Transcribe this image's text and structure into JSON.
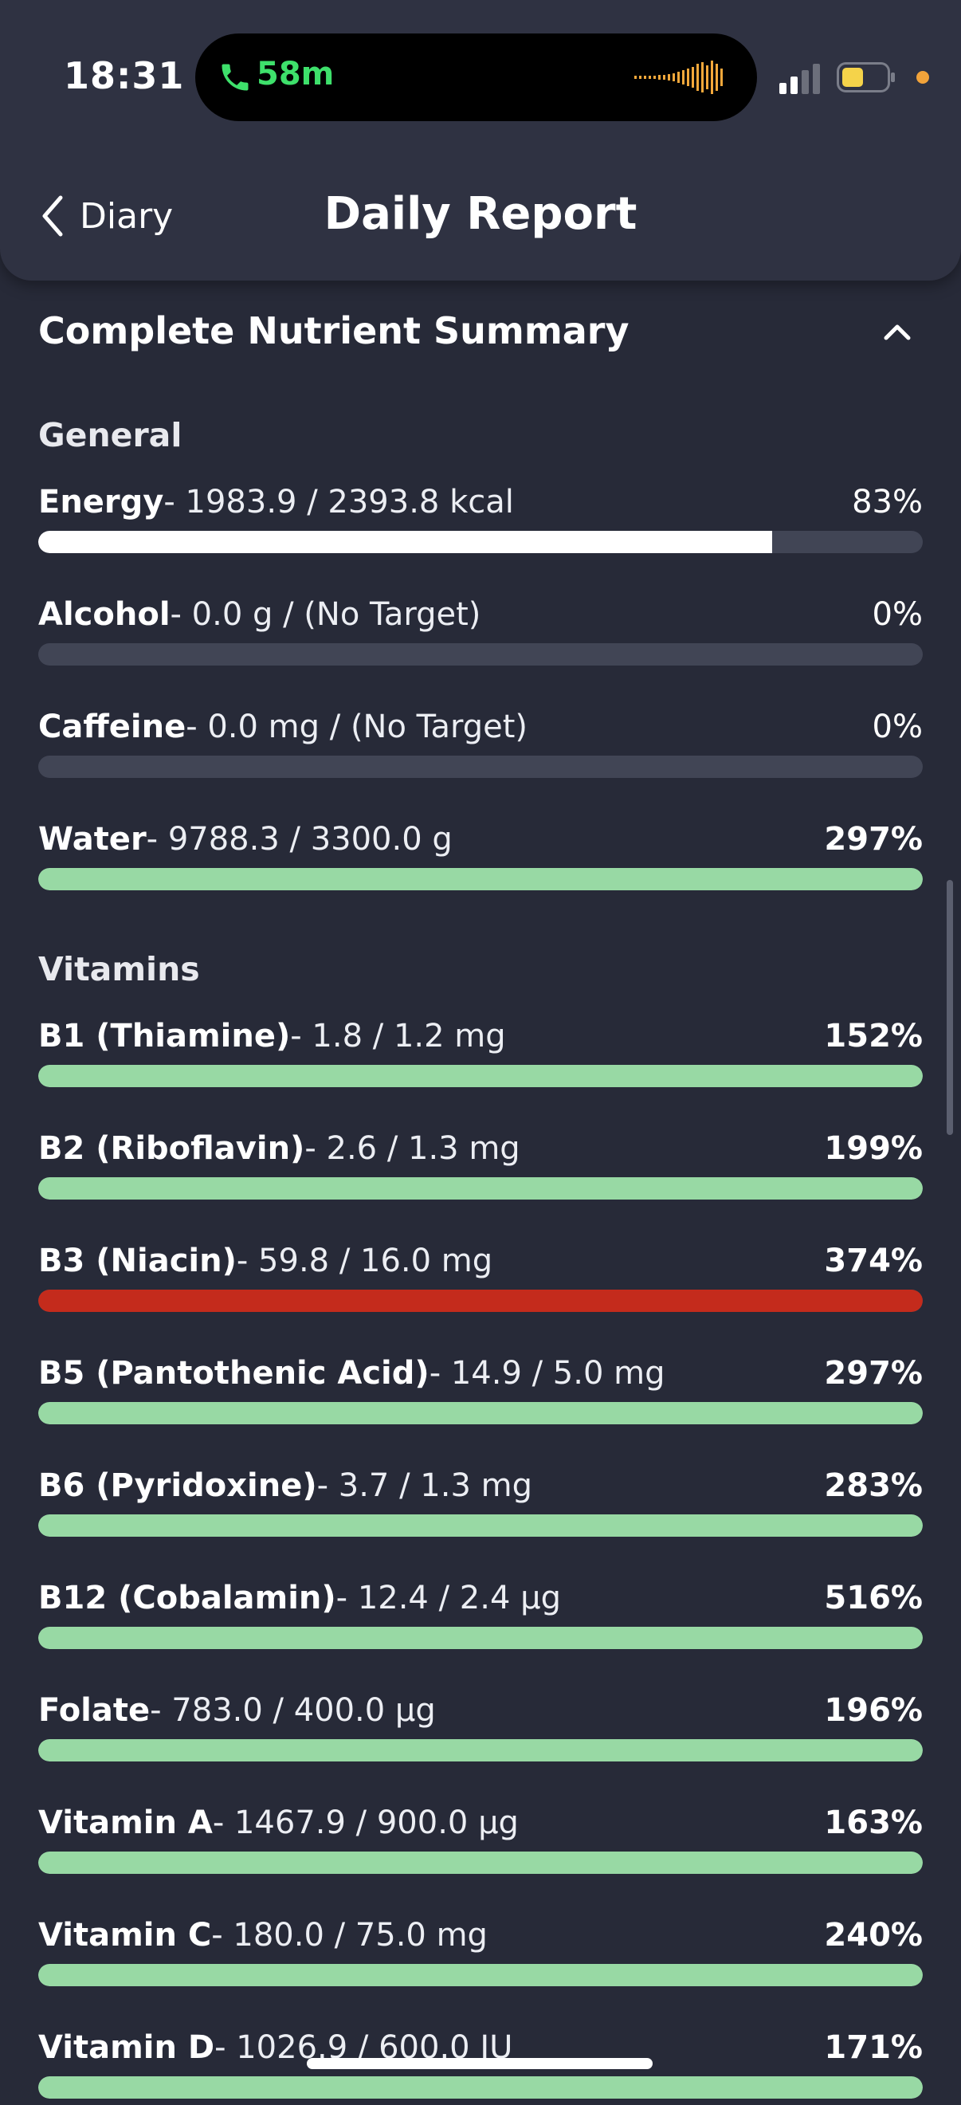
{
  "status_bar": {
    "time": "18:31",
    "call_duration": "58m"
  },
  "header": {
    "back_label": "Diary",
    "title": "Daily Report"
  },
  "section": {
    "title": "Complete Nutrient Summary"
  },
  "groups": {
    "general": "General",
    "vitamins": "Vitamins"
  },
  "colors": {
    "bar_track": "#414555",
    "energy_fill": "#ffffff",
    "ok_fill": "#98d9a4",
    "over_fill": "#c42b1c"
  },
  "nutrients": [
    {
      "name": "Energy",
      "detail": "- 1983.9 / 2393.8 kcal",
      "percent": "83%",
      "fill": 0.83,
      "status": "partial"
    },
    {
      "name": "Alcohol",
      "detail": "- 0.0 g / (No Target)",
      "percent": "0%",
      "fill": 0,
      "status": "none"
    },
    {
      "name": "Caffeine",
      "detail": "- 0.0 mg / (No Target)",
      "percent": "0%",
      "fill": 0,
      "status": "none"
    },
    {
      "name": "Water",
      "detail": "- 9788.3 / 3300.0 g",
      "percent": "297%",
      "fill": 1,
      "status": "ok"
    },
    {
      "name": "B1 (Thiamine)",
      "detail": "- 1.8 / 1.2 mg",
      "percent": "152%",
      "fill": 1,
      "status": "ok"
    },
    {
      "name": "B2 (Riboflavin)",
      "detail": "- 2.6 / 1.3 mg",
      "percent": "199%",
      "fill": 1,
      "status": "ok"
    },
    {
      "name": "B3 (Niacin)",
      "detail": "- 59.8 / 16.0 mg",
      "percent": "374%",
      "fill": 1,
      "status": "over"
    },
    {
      "name": "B5 (Pantothenic Acid)",
      "detail": "- 14.9 / 5.0 mg",
      "percent": "297%",
      "fill": 1,
      "status": "ok"
    },
    {
      "name": "B6 (Pyridoxine)",
      "detail": "- 3.7 / 1.3 mg",
      "percent": "283%",
      "fill": 1,
      "status": "ok"
    },
    {
      "name": "B12 (Cobalamin)",
      "detail": "- 12.4 / 2.4 µg",
      "percent": "516%",
      "fill": 1,
      "status": "ok"
    },
    {
      "name": "Folate",
      "detail": "- 783.0 / 400.0 µg",
      "percent": "196%",
      "fill": 1,
      "status": "ok"
    },
    {
      "name": "Vitamin A",
      "detail": "- 1467.9 / 900.0 µg",
      "percent": "163%",
      "fill": 1,
      "status": "ok"
    },
    {
      "name": "Vitamin C",
      "detail": "- 180.0 / 75.0 mg",
      "percent": "240%",
      "fill": 1,
      "status": "ok"
    },
    {
      "name": "Vitamin D",
      "detail": "- 1026.9 / 600.0 IU",
      "percent": "171%",
      "fill": 1,
      "status": "ok"
    }
  ],
  "icons": {
    "back": "chevron-left-icon",
    "collapse": "chevron-up-icon",
    "call": "phone-icon",
    "audio": "waveform-icon",
    "signal": "signal-icon",
    "battery": "battery-icon"
  }
}
